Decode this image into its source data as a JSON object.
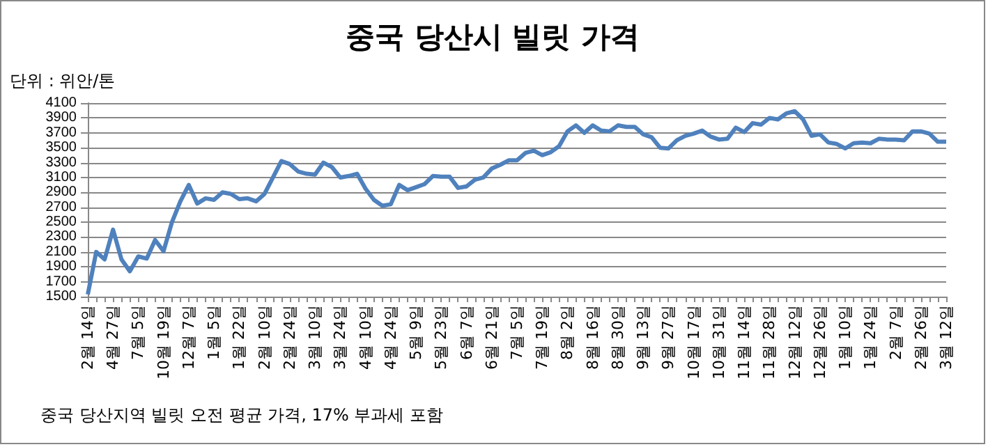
{
  "chart_data": {
    "type": "line",
    "title": "중국 당산시 빌릿 가격",
    "ylabel": "단위 : 위안/톤",
    "annotations": [
      "중국 당산지역 빌릿 오전 평균 가격, 17% 부과세 포함"
    ],
    "categories": [
      "2월 14일",
      null,
      null,
      "4월 27일",
      null,
      null,
      "7월 5일",
      null,
      null,
      "10월 19일",
      null,
      null,
      "12월 7일",
      null,
      null,
      "1월 5일",
      null,
      null,
      "1월 22일",
      null,
      null,
      "2월 10일",
      null,
      null,
      "2월 24일",
      null,
      null,
      "3월 10일",
      null,
      null,
      "3월 24일",
      null,
      null,
      "4월 10일",
      null,
      null,
      "4월 24일",
      null,
      null,
      "5월 9일",
      null,
      null,
      "5월 23일",
      null,
      null,
      "6월 7일",
      null,
      null,
      "6월 21일",
      null,
      null,
      "7월 5일",
      null,
      null,
      "7월 19일",
      null,
      null,
      "8월 2일",
      null,
      null,
      "8월 16일",
      null,
      null,
      "8월 30일",
      null,
      null,
      "9월 13일",
      null,
      null,
      "9월 27일",
      null,
      null,
      "10월 17일",
      null,
      null,
      "10월 31일",
      null,
      null,
      "11월 14일",
      null,
      null,
      "11월 28일",
      null,
      null,
      "12월 12일",
      null,
      null,
      "12월 26일",
      null,
      null,
      "1월 10일",
      null,
      null,
      "1월 24일",
      null,
      null,
      "2월 7일",
      null,
      null,
      "2월 26일",
      null,
      null,
      "3월 12일"
    ],
    "series": [
      {
        "color": "#4f81bd",
        "values": [
          1530,
          2100,
          2000,
          2400,
          2000,
          1840,
          2040,
          2010,
          2260,
          2110,
          2500,
          2780,
          3000,
          2750,
          2820,
          2800,
          2900,
          2880,
          2810,
          2820,
          2780,
          2880,
          3100,
          3320,
          3280,
          3180,
          3150,
          3140,
          3300,
          3240,
          3100,
          3120,
          3150,
          2950,
          2800,
          2720,
          2740,
          3000,
          2930,
          2970,
          3010,
          3120,
          3110,
          3110,
          2960,
          2980,
          3070,
          3100,
          3220,
          3270,
          3330,
          3330,
          3430,
          3460,
          3400,
          3440,
          3520,
          3720,
          3800,
          3700,
          3800,
          3730,
          3720,
          3800,
          3780,
          3780,
          3680,
          3640,
          3500,
          3490,
          3600,
          3660,
          3690,
          3730,
          3650,
          3610,
          3620,
          3770,
          3710,
          3830,
          3810,
          3900,
          3880,
          3960,
          3990,
          3880,
          3660,
          3680,
          3570,
          3550,
          3490,
          3560,
          3570,
          3560,
          3620,
          3610,
          3610,
          3600,
          3720,
          3720,
          3690,
          3580,
          3580
        ]
      }
    ],
    "ylim": [
      1500,
      4100
    ],
    "yticks": [
      1500,
      1700,
      1900,
      2100,
      2300,
      2500,
      2700,
      2900,
      3100,
      3300,
      3500,
      3700,
      3900,
      4100
    ],
    "grid": "y",
    "marker": "none",
    "line_style": "solid"
  }
}
